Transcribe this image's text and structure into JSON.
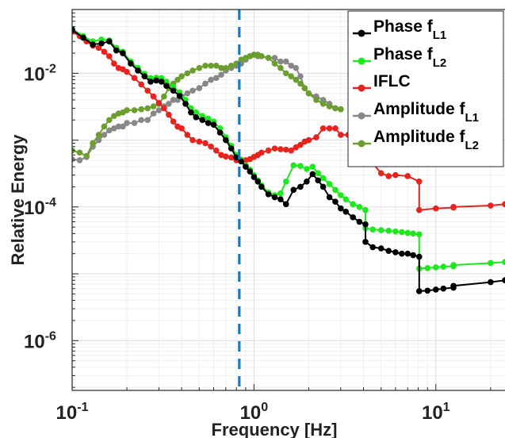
{
  "chart_data": {
    "type": "line",
    "title": "",
    "xlabel": "Frequency [Hz]",
    "ylabel": "Relative Energy",
    "x_scale": "log",
    "y_scale": "log",
    "xlim": [
      0.1,
      24
    ],
    "ylim": [
      1.8e-07,
      0.09
    ],
    "grid": true,
    "legend_position": "top-right",
    "x_ticks": [
      {
        "base": "10",
        "exp": "-1",
        "value": 0.1
      },
      {
        "base": "10",
        "exp": "0",
        "value": 1
      },
      {
        "base": "10",
        "exp": "1",
        "value": 10
      }
    ],
    "y_ticks": [
      {
        "base": "10",
        "exp": "-2",
        "value": 0.01
      },
      {
        "base": "10",
        "exp": "-4",
        "value": 0.0001
      },
      {
        "base": "10",
        "exp": "-6",
        "value": 1e-06
      }
    ],
    "vline": {
      "x": 0.83,
      "color": "#1f77b4"
    },
    "series": [
      {
        "name": "Phase f",
        "sub": "L1",
        "color": "#000000",
        "x": [
          0.1,
          0.115,
          0.13,
          0.145,
          0.16,
          0.175,
          0.19,
          0.21,
          0.23,
          0.25,
          0.27,
          0.29,
          0.31,
          0.33,
          0.36,
          0.39,
          0.42,
          0.45,
          0.48,
          0.52,
          0.56,
          0.6,
          0.65,
          0.7,
          0.75,
          0.8,
          0.85,
          0.9,
          0.95,
          1.0,
          1.05,
          1.1,
          1.2,
          1.3,
          1.4,
          1.5,
          1.65,
          1.8,
          1.95,
          2.1,
          2.25,
          2.4,
          2.6,
          2.8,
          3.0,
          3.2,
          3.5,
          3.8,
          4.1,
          4.1,
          4.5,
          5.0,
          5.5,
          6.0,
          6.5,
          7.0,
          7.5,
          8.1,
          8.1,
          9.0,
          10.0,
          11.0,
          12.5,
          12.5,
          20.0,
          24.0
        ],
        "y": [
          0.045,
          0.034,
          0.027,
          0.028,
          0.03,
          0.022,
          0.02,
          0.014,
          0.011,
          0.009,
          0.0075,
          0.0078,
          0.0075,
          0.0065,
          0.0055,
          0.0046,
          0.0035,
          0.0026,
          0.0022,
          0.002,
          0.0018,
          0.0017,
          0.0013,
          0.001,
          0.00075,
          0.00055,
          0.00048,
          0.0004,
          0.00034,
          0.00028,
          0.00024,
          0.0002,
          0.000155,
          0.00014,
          0.00013,
          0.00011,
          0.00018,
          0.0002,
          0.00024,
          0.00031,
          0.00025,
          0.0002,
          0.00014,
          0.00012,
          9.5e-05,
          8.5e-05,
          7e-05,
          6e-05,
          5.5e-05,
          3e-05,
          2.5e-05,
          2.4e-05,
          2.2e-05,
          2.1e-05,
          2e-05,
          2e-05,
          1.9e-05,
          1.8e-05,
          5.5e-06,
          5.6e-06,
          5.8e-06,
          6e-06,
          6.2e-06,
          6.6e-06,
          7.5e-06,
          8e-06
        ]
      },
      {
        "name": "Phase f",
        "sub": "L2",
        "color": "#1ee81e",
        "x": [
          0.1,
          0.115,
          0.13,
          0.145,
          0.16,
          0.175,
          0.19,
          0.21,
          0.23,
          0.25,
          0.27,
          0.29,
          0.31,
          0.33,
          0.36,
          0.39,
          0.42,
          0.45,
          0.48,
          0.52,
          0.56,
          0.6,
          0.65,
          0.7,
          0.75,
          0.8,
          0.85,
          0.9,
          0.95,
          1.0,
          1.05,
          1.1,
          1.2,
          1.3,
          1.4,
          1.5,
          1.65,
          1.8,
          1.95,
          2.1,
          2.25,
          2.4,
          2.6,
          2.8,
          3.0,
          3.2,
          3.5,
          3.8,
          4.1,
          4.1,
          4.5,
          5.0,
          5.5,
          6.0,
          6.5,
          7.0,
          7.5,
          8.1,
          8.1,
          9.0,
          10.0,
          11.0,
          12.5,
          12.5,
          20.0,
          24.0
        ],
        "y": [
          0.046,
          0.036,
          0.03,
          0.032,
          0.031,
          0.024,
          0.021,
          0.015,
          0.012,
          0.0098,
          0.0085,
          0.0086,
          0.0085,
          0.0075,
          0.0063,
          0.0052,
          0.004,
          0.003,
          0.0026,
          0.0023,
          0.0021,
          0.0019,
          0.0015,
          0.0011,
          0.00082,
          0.0006,
          0.00051,
          0.00042,
          0.00036,
          0.0003,
          0.00025,
          0.00021,
          0.000165,
          0.00015,
          0.00016,
          0.00024,
          0.00042,
          0.00041,
          0.00037,
          0.0004,
          0.00032,
          0.00027,
          0.00022,
          0.00018,
          0.00015,
          0.00013,
          0.00011,
          0.0001,
          9e-05,
          4.8e-05,
          4.6e-05,
          4.5e-05,
          4.4e-05,
          4.3e-05,
          4.2e-05,
          4.1e-05,
          4e-05,
          3.9e-05,
          1.2e-05,
          1.22e-05,
          1.25e-05,
          1.28e-05,
          1.3e-05,
          1.35e-05,
          1.45e-05,
          1.5e-05
        ]
      },
      {
        "name": "IFLC",
        "sub": "",
        "color": "#e8231e",
        "x": [
          0.1,
          0.11,
          0.12,
          0.13,
          0.14,
          0.15,
          0.16,
          0.17,
          0.18,
          0.19,
          0.2,
          0.22,
          0.24,
          0.26,
          0.28,
          0.3,
          0.32,
          0.34,
          0.36,
          0.38,
          0.4,
          0.43,
          0.46,
          0.5,
          0.54,
          0.58,
          0.62,
          0.66,
          0.7,
          0.75,
          0.8,
          0.85,
          0.9,
          0.95,
          1.0,
          1.05,
          1.1,
          1.2,
          1.3,
          1.4,
          1.5,
          1.6,
          1.7,
          1.8,
          1.9,
          2.0,
          2.2,
          2.4,
          2.6,
          2.8,
          3.0,
          3.3,
          3.6,
          4.0,
          4.0,
          4.5,
          5.0,
          5.5,
          6.0,
          7.0,
          8.1,
          8.1,
          10.0,
          12.5,
          12.5,
          20.0,
          24.0
        ],
        "y": [
          0.042,
          0.036,
          0.03,
          0.026,
          0.024,
          0.021,
          0.018,
          0.014,
          0.012,
          0.0115,
          0.0105,
          0.0085,
          0.0068,
          0.0055,
          0.0045,
          0.0036,
          0.003,
          0.0024,
          0.0019,
          0.0016,
          0.0015,
          0.0012,
          0.001,
          0.00095,
          0.0009,
          0.0008,
          0.0007,
          0.0006,
          0.00057,
          0.00055,
          0.0005,
          0.00049,
          0.0005,
          0.00052,
          0.00056,
          0.0006,
          0.00065,
          0.0007,
          0.00075,
          0.00073,
          0.00072,
          0.0007,
          0.00078,
          0.00085,
          0.00095,
          0.001,
          0.0011,
          0.0015,
          0.0015,
          0.0015,
          0.0012,
          0.0012,
          0.0011,
          0.0011,
          0.0005,
          0.00045,
          0.00032,
          0.00029,
          0.0003,
          0.00029,
          0.00024,
          9e-05,
          9.5e-05,
          9.8e-05,
          0.0001,
          0.000105,
          0.00011
        ]
      },
      {
        "name": "Amplitude f",
        "sub": "L1",
        "color": "#888888",
        "x": [
          0.1,
          0.11,
          0.12,
          0.13,
          0.14,
          0.15,
          0.16,
          0.17,
          0.18,
          0.19,
          0.2,
          0.22,
          0.24,
          0.26,
          0.28,
          0.3,
          0.32,
          0.34,
          0.36,
          0.38,
          0.4,
          0.43,
          0.46,
          0.5,
          0.54,
          0.58,
          0.62,
          0.66,
          0.7,
          0.75,
          0.8,
          0.85,
          0.9,
          0.95,
          1.0,
          1.05,
          1.1,
          1.2,
          1.3,
          1.4,
          1.5,
          1.6,
          1.7,
          1.8,
          1.9,
          2.0,
          2.2,
          2.4,
          2.6,
          2.8,
          3.0
        ],
        "y": [
          0.00052,
          0.0005,
          0.00056,
          0.0008,
          0.001,
          0.0012,
          0.0014,
          0.0015,
          0.0016,
          0.0016,
          0.0018,
          0.0018,
          0.002,
          0.002,
          0.0025,
          0.0028,
          0.0032,
          0.0035,
          0.004,
          0.004,
          0.0045,
          0.005,
          0.0055,
          0.006,
          0.007,
          0.008,
          0.0085,
          0.0095,
          0.011,
          0.012,
          0.013,
          0.014,
          0.016,
          0.018,
          0.019,
          0.018,
          0.018,
          0.017,
          0.017,
          0.015,
          0.015,
          0.013,
          0.012,
          0.009,
          0.006,
          0.005,
          0.0045,
          0.004,
          0.0035,
          0.003,
          0.0029
        ]
      },
      {
        "name": "Amplitude f",
        "sub": "L2",
        "color": "#6b9e2e",
        "x": [
          0.1,
          0.11,
          0.12,
          0.13,
          0.14,
          0.15,
          0.16,
          0.17,
          0.18,
          0.19,
          0.2,
          0.22,
          0.24,
          0.26,
          0.28,
          0.3,
          0.32,
          0.34,
          0.36,
          0.38,
          0.4,
          0.43,
          0.46,
          0.5,
          0.54,
          0.58,
          0.62,
          0.66,
          0.7,
          0.75,
          0.8,
          0.85,
          0.9,
          0.95,
          1.0,
          1.05,
          1.1,
          1.2,
          1.3,
          1.4,
          1.5,
          1.6,
          1.7,
          1.8,
          1.9,
          2.0,
          2.2,
          2.4,
          2.6,
          2.8,
          3.0
        ],
        "y": [
          0.0007,
          0.00065,
          0.00058,
          0.0009,
          0.0012,
          0.0016,
          0.002,
          0.0023,
          0.0025,
          0.0026,
          0.0028,
          0.0028,
          0.0029,
          0.003,
          0.0032,
          0.0035,
          0.0045,
          0.006,
          0.007,
          0.008,
          0.009,
          0.01,
          0.011,
          0.012,
          0.013,
          0.013,
          0.013,
          0.012,
          0.012,
          0.013,
          0.014,
          0.016,
          0.017,
          0.018,
          0.019,
          0.019,
          0.018,
          0.017,
          0.014,
          0.012,
          0.01,
          0.009,
          0.008,
          0.007,
          0.006,
          0.005,
          0.004,
          0.0035,
          0.0032,
          0.003,
          0.0029
        ]
      }
    ]
  }
}
